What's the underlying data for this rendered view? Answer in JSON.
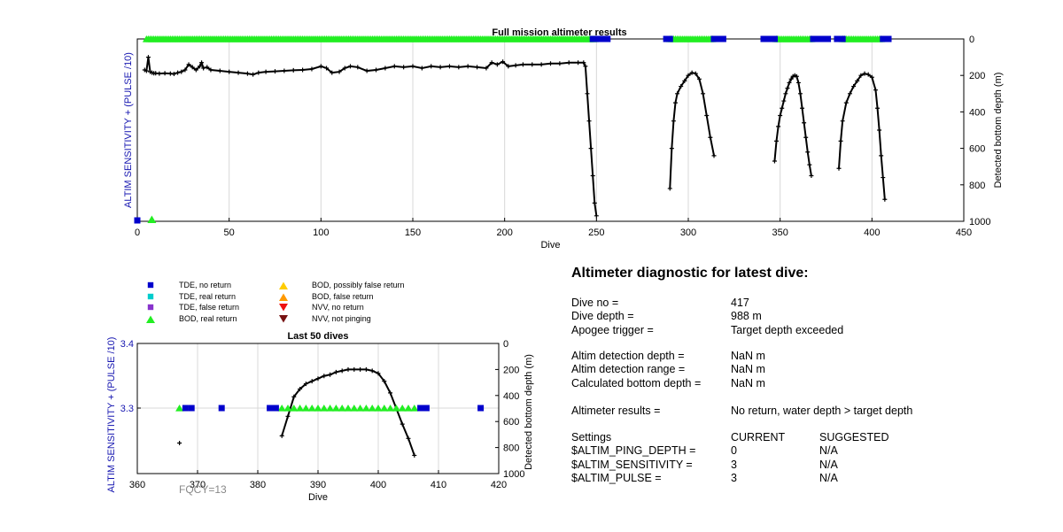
{
  "chart_data": [
    {
      "type": "scatter",
      "title": "Full mission altimeter results",
      "xlabel": "Dive",
      "ylabel_left": "ALTIM SENSITIVITY + (PULSE /10)",
      "ylabel_right": "Detected bottom depth (m)",
      "xlim": [
        0,
        450
      ],
      "xticks": [
        "0",
        "50",
        "100",
        "150",
        "200",
        "250",
        "300",
        "350",
        "400",
        "450"
      ],
      "yticks_right": [
        "0",
        "200",
        "400",
        "600",
        "800",
        "1000"
      ],
      "grid": "vertical",
      "markers_top": [
        {
          "type": "BOD, real return",
          "ranges": [
            [
              5,
              249
            ],
            [
              290,
              313
            ],
            [
              348,
              367
            ],
            [
              384,
              405
            ]
          ]
        },
        {
          "type": "TDE, no return",
          "ranges": [
            [
              248,
              256
            ],
            [
              288,
              290
            ],
            [
              314,
              319
            ],
            [
              341,
              347
            ],
            [
              368,
              371
            ],
            [
              374,
              376
            ],
            [
              381,
              384
            ],
            [
              406,
              409
            ]
          ]
        }
      ],
      "markers_bottom": [
        {
          "type": "TDE, no return",
          "x": [
            0
          ]
        },
        {
          "type": "BOD, real return",
          "x": [
            5
          ]
        }
      ],
      "series": [
        {
          "x": [
            4,
            5,
            6,
            7,
            8,
            9,
            10,
            12,
            15,
            18,
            20,
            22,
            24,
            26,
            28,
            30,
            32,
            34,
            35,
            36,
            38,
            40,
            45,
            50,
            55,
            60,
            63,
            66,
            70,
            75,
            80,
            85,
            90,
            95,
            100,
            103,
            106,
            110,
            113,
            116,
            120,
            125,
            130,
            135,
            140,
            145,
            150,
            155,
            160,
            165,
            170,
            175,
            180,
            185,
            190,
            193,
            196,
            199,
            202,
            206,
            210,
            215,
            220,
            225,
            230,
            235,
            240,
            243,
            244,
            245,
            246,
            247,
            248,
            249,
            250
          ],
          "y": [
            170,
            175,
            100,
            180,
            185,
            188,
            188,
            190,
            188,
            190,
            192,
            185,
            180,
            170,
            140,
            155,
            170,
            150,
            130,
            160,
            155,
            170,
            175,
            180,
            185,
            190,
            195,
            185,
            180,
            178,
            175,
            172,
            170,
            165,
            150,
            160,
            185,
            180,
            160,
            150,
            155,
            175,
            170,
            160,
            150,
            155,
            150,
            160,
            150,
            155,
            150,
            155,
            150,
            155,
            160,
            130,
            140,
            125,
            150,
            145,
            140,
            140,
            140,
            135,
            135,
            130,
            130,
            130,
            150,
            300,
            450,
            600,
            750,
            900,
            970
          ]
        },
        {
          "x": [
            290,
            291,
            292,
            293,
            294,
            296,
            298,
            300,
            302,
            304,
            306,
            308,
            310,
            312,
            314
          ],
          "y": [
            820,
            600,
            450,
            350,
            300,
            260,
            230,
            200,
            185,
            190,
            220,
            300,
            420,
            540,
            640
          ]
        },
        {
          "x": [
            347,
            348,
            349,
            350,
            351,
            352,
            353,
            354,
            355,
            356,
            357,
            358,
            359,
            360,
            361,
            362,
            363,
            364,
            365,
            366,
            367
          ],
          "y": [
            670,
            560,
            480,
            420,
            380,
            340,
            300,
            270,
            240,
            220,
            205,
            200,
            205,
            240,
            300,
            380,
            460,
            540,
            620,
            690,
            750
          ]
        },
        {
          "x": [
            382,
            383,
            384,
            386,
            388,
            390,
            392,
            394,
            396,
            398,
            400,
            402,
            403,
            404,
            405,
            406,
            407
          ],
          "y": [
            710,
            560,
            450,
            350,
            300,
            260,
            230,
            200,
            190,
            195,
            210,
            280,
            380,
            500,
            640,
            760,
            880
          ]
        }
      ]
    },
    {
      "type": "scatter",
      "title": "Last 50 dives",
      "xlabel": "Dive",
      "ylabel_left": "ALTIM SENSITIVITY + (PULSE /10)",
      "ylabel_right": "Detected bottom depth (m)",
      "xlim": [
        360,
        420
      ],
      "xticks": [
        "360",
        "370",
        "380",
        "390",
        "400",
        "410",
        "420"
      ],
      "yticks_left": [
        "3.3",
        "3.4"
      ],
      "yticks_right": [
        "0",
        "200",
        "400",
        "600",
        "800",
        "1000"
      ],
      "grid": "vertical",
      "markers": [
        {
          "type": "BOD, real return",
          "x": [
            367,
            384,
            385,
            386,
            387,
            388,
            389,
            390,
            391,
            392,
            393,
            394,
            395,
            396,
            397,
            398,
            399,
            400,
            401,
            402,
            403,
            404,
            405,
            406
          ],
          "y": 3.3
        },
        {
          "type": "TDE, no return",
          "x": [
            368,
            369,
            374,
            382,
            383,
            407,
            408,
            417
          ],
          "y": 3.3
        },
        {
          "type": "single",
          "x": [
            367
          ],
          "y": 3.25
        }
      ],
      "series": [
        {
          "x": [
            384,
            385,
            386,
            387,
            388,
            389,
            390,
            391,
            392,
            393,
            394,
            395,
            396,
            397,
            398,
            399,
            400,
            401,
            402,
            403,
            404,
            405,
            406
          ],
          "y": [
            710,
            560,
            410,
            350,
            310,
            290,
            270,
            250,
            240,
            220,
            210,
            200,
            200,
            200,
            200,
            210,
            230,
            290,
            380,
            500,
            620,
            730,
            860
          ]
        }
      ]
    }
  ],
  "legend": [
    {
      "label": "TDE, no return",
      "shape": "square",
      "color": "#0000cc"
    },
    {
      "label": "TDE, real return",
      "shape": "square",
      "color": "#00cccc"
    },
    {
      "label": "TDE, false return",
      "shape": "square",
      "color": "#8833cc"
    },
    {
      "label": "BOD, real return",
      "shape": "triangle-up",
      "color": "#22ee22"
    },
    {
      "label": "BOD, possibly false return",
      "shape": "triangle-up",
      "color": "#ffcc00"
    },
    {
      "label": "BOD, false return",
      "shape": "triangle-up",
      "color": "#ff9900"
    },
    {
      "label": "NVV, no return",
      "shape": "triangle-down",
      "color": "#ee1111"
    },
    {
      "label": "NVV, not pinging",
      "shape": "triangle-down",
      "color": "#771111"
    }
  ],
  "diagnostic": {
    "title": "Altimeter diagnostic for latest dive:",
    "rows": [
      {
        "label": "Dive no =",
        "value": "417"
      },
      {
        "label": "Dive depth =",
        "value": "988 m"
      },
      {
        "label": "Apogee trigger =",
        "value": "Target depth exceeded"
      },
      {
        "label": "Altim detection depth =",
        "value": "NaN m"
      },
      {
        "label": "Altim detection range =",
        "value": "NaN m"
      },
      {
        "label": "Calculated bottom depth =",
        "value": "NaN m"
      },
      {
        "label": "Altimeter results =",
        "value": "No return, water depth > target depth"
      }
    ],
    "settings_header": {
      "label": "Settings",
      "current": "CURRENT",
      "suggested": "SUGGESTED"
    },
    "settings": [
      {
        "label": "$ALTIM_PING_DEPTH =",
        "current": "0",
        "suggested": "N/A"
      },
      {
        "label": "$ALTIM_SENSITIVITY =",
        "current": "3",
        "suggested": "N/A"
      },
      {
        "label": "$ALTIM_PULSE =",
        "current": "3",
        "suggested": "N/A"
      }
    ]
  },
  "fqcy_label": "FQCY=13",
  "colors": {
    "axis_label_left": "#1515b0",
    "line": "#000000",
    "grid": "#d8d8d8",
    "no_return": "#0000cc",
    "real_return": "#22ee22"
  }
}
